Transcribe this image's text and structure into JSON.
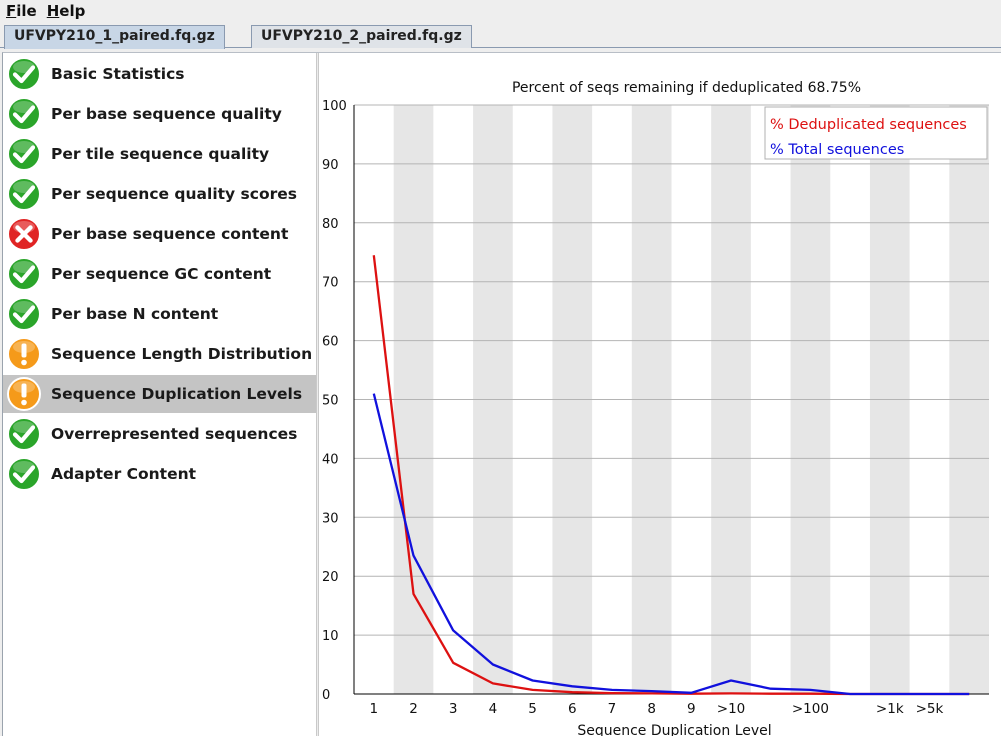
{
  "menu": [
    {
      "mnemonic": "F",
      "rest": "ile"
    },
    {
      "mnemonic": "H",
      "rest": "elp"
    }
  ],
  "tabs": [
    {
      "label": "UFVPY210_1_paired.fq.gz",
      "active": true
    },
    {
      "label": "UFVPY210_2_paired.fq.gz",
      "active": false
    }
  ],
  "modules": [
    {
      "label": "Basic Statistics",
      "status": "pass"
    },
    {
      "label": "Per base sequence quality",
      "status": "pass"
    },
    {
      "label": "Per tile sequence quality",
      "status": "pass"
    },
    {
      "label": "Per sequence quality scores",
      "status": "pass"
    },
    {
      "label": "Per base sequence content",
      "status": "fail"
    },
    {
      "label": "Per sequence GC content",
      "status": "pass"
    },
    {
      "label": "Per base N content",
      "status": "pass"
    },
    {
      "label": "Sequence Length Distribution",
      "status": "warn"
    },
    {
      "label": "Sequence Duplication Levels",
      "status": "warn",
      "selected": true
    },
    {
      "label": "Overrepresented sequences",
      "status": "pass"
    },
    {
      "label": "Adapter Content",
      "status": "pass"
    }
  ],
  "status_colors": {
    "pass": "#2aa52a",
    "fail": "#e02424",
    "warn": "#f59a1a"
  },
  "chart_data": {
    "type": "line",
    "title": "Percent of seqs remaining if deduplicated 68.75%",
    "xlabel": "Sequence Duplication Level",
    "ylabel": "",
    "ylim": [
      0,
      100
    ],
    "yticks": [
      0,
      10,
      20,
      30,
      40,
      50,
      60,
      70,
      80,
      90,
      100
    ],
    "categories": [
      "1",
      "2",
      "3",
      "4",
      "5",
      "6",
      "7",
      "8",
      "9",
      ">10",
      "",
      ">100",
      "",
      ">1k",
      ">5k",
      ""
    ],
    "grid": true,
    "legend_position": "top-right",
    "series": [
      {
        "name": "% Deduplicated sequences",
        "color": "#dd1111",
        "values": [
          74.5,
          17.0,
          5.3,
          1.8,
          0.7,
          0.3,
          0.15,
          0.1,
          0.05,
          0.1,
          0.05,
          0.05,
          0.0,
          0.0,
          0.0,
          0.0
        ]
      },
      {
        "name": "% Total sequences",
        "color": "#1111dd",
        "values": [
          51.0,
          23.5,
          10.8,
          5.0,
          2.3,
          1.3,
          0.7,
          0.5,
          0.2,
          2.3,
          0.9,
          0.7,
          0.0,
          0.0,
          0.0,
          0.0
        ]
      }
    ]
  }
}
